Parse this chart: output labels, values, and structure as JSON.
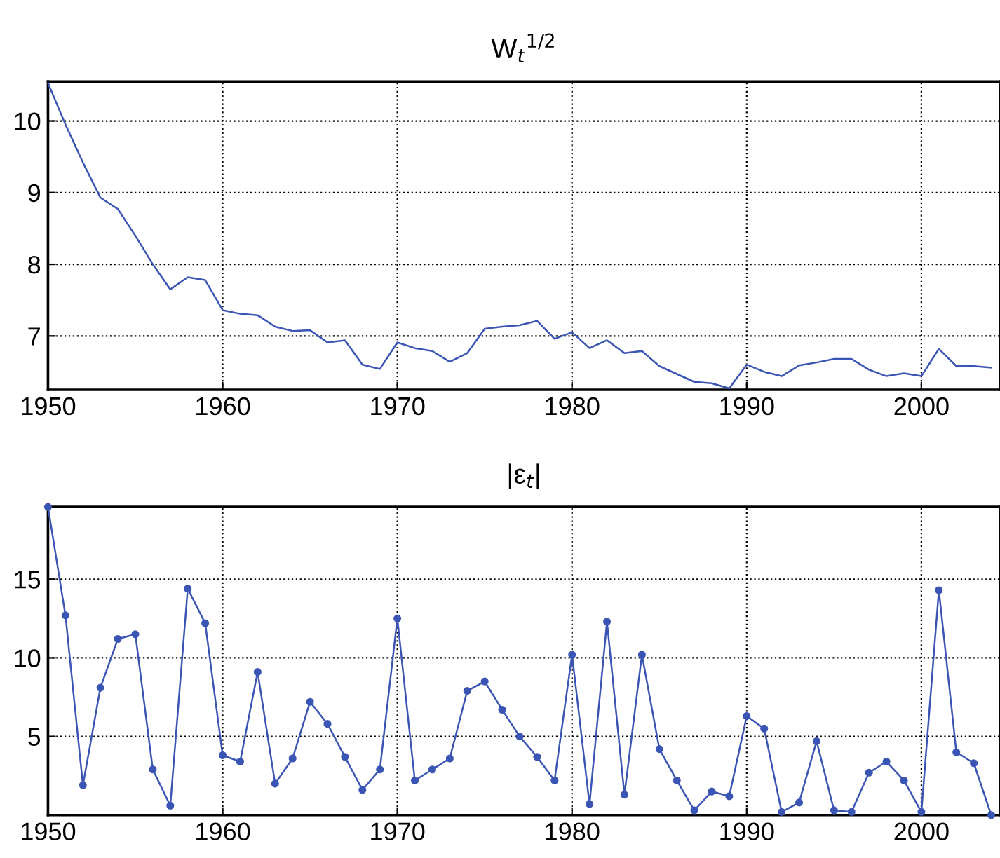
{
  "chart_data": [
    {
      "type": "line",
      "title": "W$_{t}$$^{1/2}$",
      "x": [
        1950,
        1951,
        1952,
        1953,
        1954,
        1955,
        1956,
        1957,
        1958,
        1959,
        1960,
        1961,
        1962,
        1963,
        1964,
        1965,
        1966,
        1967,
        1968,
        1969,
        1970,
        1971,
        1972,
        1973,
        1974,
        1975,
        1976,
        1977,
        1978,
        1979,
        1980,
        1981,
        1982,
        1983,
        1984,
        1985,
        1986,
        1987,
        1988,
        1989,
        1990,
        1991,
        1992,
        1993,
        1994,
        1995,
        1996,
        1997,
        1998,
        1999,
        2000,
        2001,
        2002,
        2003,
        2004
      ],
      "series": [
        {
          "color": "#3a55b4",
          "values": [
            10.53,
            9.95,
            9.42,
            8.93,
            8.77,
            8.4,
            8.0,
            7.65,
            7.82,
            7.78,
            7.36,
            7.31,
            7.29,
            7.13,
            7.07,
            7.08,
            6.91,
            6.94,
            6.6,
            6.54,
            6.91,
            6.83,
            6.79,
            6.64,
            6.76,
            7.1,
            7.13,
            7.15,
            7.21,
            6.96,
            7.05,
            6.83,
            6.94,
            6.76,
            6.79,
            6.58,
            6.47,
            6.36,
            6.34,
            6.27,
            6.6,
            6.5,
            6.44,
            6.59,
            6.63,
            6.68,
            6.68,
            6.53,
            6.44,
            6.48,
            6.44,
            6.82,
            6.58,
            6.58,
            6.56
          ]
        }
      ],
      "xlim": [
        1950,
        2004.5
      ],
      "xticks": [
        1950,
        1960,
        1970,
        1980,
        1990,
        2000
      ],
      "ylim": [
        6.25,
        10.55
      ],
      "yticks": [
        7,
        8,
        9,
        10
      ],
      "grid": true,
      "marker": "none"
    },
    {
      "type": "line",
      "title": "|ε$_{t}$|",
      "x": [
        1950,
        1951,
        1952,
        1953,
        1954,
        1955,
        1956,
        1957,
        1958,
        1959,
        1960,
        1961,
        1962,
        1963,
        1964,
        1965,
        1966,
        1967,
        1968,
        1969,
        1970,
        1971,
        1972,
        1973,
        1974,
        1975,
        1976,
        1977,
        1978,
        1979,
        1980,
        1981,
        1982,
        1983,
        1984,
        1985,
        1986,
        1987,
        1988,
        1989,
        1990,
        1991,
        1992,
        1993,
        1994,
        1995,
        1996,
        1997,
        1998,
        1999,
        2000,
        2001,
        2002,
        2003,
        2004
      ],
      "series": [
        {
          "color": "#3a55b4",
          "values": [
            19.6,
            12.7,
            1.9,
            8.1,
            11.2,
            11.5,
            2.9,
            0.6,
            14.4,
            12.2,
            3.8,
            3.4,
            9.1,
            2.0,
            3.6,
            7.2,
            5.8,
            3.7,
            1.6,
            2.9,
            12.5,
            2.2,
            2.9,
            3.6,
            7.9,
            8.5,
            6.7,
            5.0,
            3.7,
            2.2,
            10.2,
            0.7,
            12.3,
            1.3,
            10.2,
            4.2,
            2.2,
            0.3,
            1.5,
            1.2,
            6.3,
            5.5,
            0.2,
            0.8,
            4.7,
            0.3,
            0.2,
            2.7,
            3.4,
            2.2,
            0.2,
            14.3,
            4.0,
            3.3,
            0.0
          ]
        }
      ],
      "xlim": [
        1950,
        2004.5
      ],
      "xticks": [
        1950,
        1960,
        1970,
        1980,
        1990,
        2000
      ],
      "ylim": [
        0,
        19.6
      ],
      "yticks": [
        5,
        10,
        15
      ],
      "grid": true,
      "marker": "circle"
    }
  ]
}
